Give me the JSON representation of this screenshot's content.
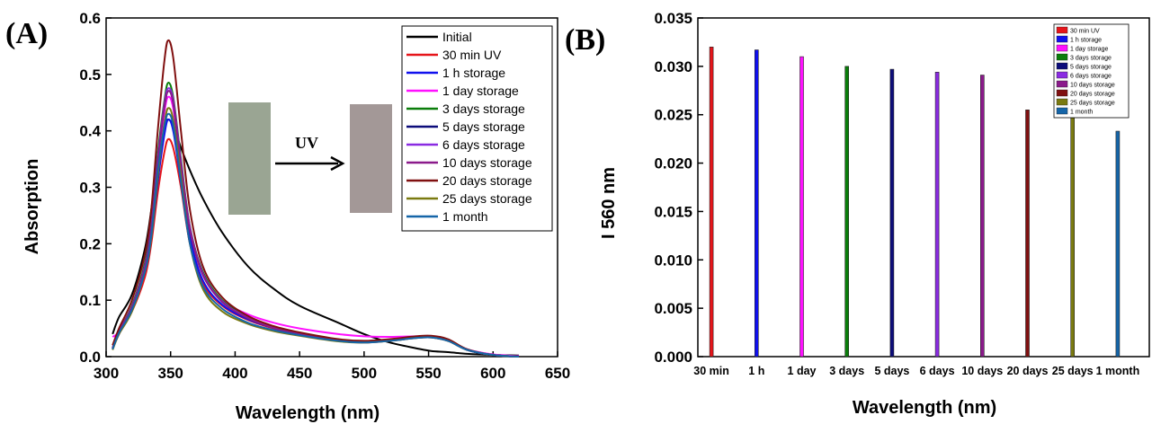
{
  "panels": {
    "a_label": "(A)",
    "b_label": "(B)"
  },
  "inset": {
    "arrow_label": "UV",
    "film_before_color": "#9aa593",
    "film_after_color": "#a39897"
  },
  "colors": {
    "Initial": "#000000",
    "30 min UV": "#e6151a",
    "1 h storage": "#1010ee",
    "1 day storage": "#ff10ff",
    "3 days storage": "#0a7d0a",
    "5 days storage": "#0c0c7a",
    "6 days storage": "#8a2be2",
    "10 days storage": "#8b1a8b",
    "20 days storage": "#801010",
    "25 days storage": "#7a7a10",
    "1 month": "#1565a8"
  },
  "chart_data": [
    {
      "type": "line",
      "xlabel": "Wavelength (nm)",
      "ylabel": "Absorption",
      "xlim": [
        300,
        650
      ],
      "ylim": [
        0.0,
        0.6
      ],
      "xticks": [
        300,
        350,
        400,
        450,
        500,
        550,
        600,
        650
      ],
      "yticks": [
        0.0,
        0.1,
        0.2,
        0.3,
        0.4,
        0.5,
        0.6
      ],
      "grid": false,
      "legend_position": "top-right",
      "x": [
        305,
        310,
        320,
        330,
        335,
        340,
        345,
        348,
        352,
        358,
        365,
        375,
        390,
        410,
        430,
        450,
        480,
        500,
        520,
        540,
        552,
        565,
        580,
        600,
        620
      ],
      "series": [
        {
          "name": "Initial",
          "values": [
            0.04,
            0.07,
            0.11,
            0.19,
            0.26,
            0.35,
            0.41,
            0.42,
            0.41,
            0.37,
            0.33,
            0.28,
            0.22,
            0.16,
            0.12,
            0.09,
            0.06,
            0.04,
            0.025,
            0.015,
            0.01,
            0.008,
            0.005,
            0.003,
            0.002
          ]
        },
        {
          "name": "30 min UV",
          "values": [
            0.015,
            0.04,
            0.08,
            0.14,
            0.2,
            0.29,
            0.36,
            0.385,
            0.37,
            0.3,
            0.2,
            0.13,
            0.09,
            0.065,
            0.05,
            0.04,
            0.028,
            0.025,
            0.028,
            0.033,
            0.034,
            0.028,
            0.012,
            0.003,
            0.0
          ]
        },
        {
          "name": "1 h storage",
          "values": [
            0.015,
            0.04,
            0.085,
            0.15,
            0.21,
            0.31,
            0.39,
            0.42,
            0.4,
            0.31,
            0.21,
            0.135,
            0.092,
            0.066,
            0.051,
            0.041,
            0.029,
            0.026,
            0.029,
            0.034,
            0.035,
            0.029,
            0.012,
            0.003,
            0.0
          ]
        },
        {
          "name": "1 day storage",
          "values": [
            0.035,
            0.045,
            0.09,
            0.16,
            0.23,
            0.34,
            0.43,
            0.46,
            0.44,
            0.34,
            0.23,
            0.15,
            0.1,
            0.075,
            0.06,
            0.05,
            0.04,
            0.036,
            0.035,
            0.036,
            0.036,
            0.03,
            0.013,
            0.004,
            0.001
          ]
        },
        {
          "name": "3 days storage",
          "values": [
            0.015,
            0.045,
            0.09,
            0.165,
            0.24,
            0.36,
            0.45,
            0.485,
            0.46,
            0.35,
            0.23,
            0.15,
            0.1,
            0.07,
            0.052,
            0.042,
            0.03,
            0.027,
            0.03,
            0.035,
            0.036,
            0.03,
            0.012,
            0.003,
            0.0
          ]
        },
        {
          "name": "5 days storage",
          "values": [
            0.015,
            0.045,
            0.088,
            0.16,
            0.23,
            0.35,
            0.44,
            0.47,
            0.45,
            0.34,
            0.225,
            0.145,
            0.097,
            0.068,
            0.051,
            0.041,
            0.029,
            0.026,
            0.029,
            0.034,
            0.035,
            0.029,
            0.012,
            0.003,
            0.0
          ]
        },
        {
          "name": "6 days storage",
          "values": [
            0.015,
            0.045,
            0.088,
            0.16,
            0.23,
            0.35,
            0.445,
            0.475,
            0.455,
            0.345,
            0.228,
            0.147,
            0.098,
            0.069,
            0.052,
            0.042,
            0.03,
            0.027,
            0.03,
            0.035,
            0.036,
            0.03,
            0.012,
            0.003,
            0.0
          ]
        },
        {
          "name": "10 days storage",
          "values": [
            0.015,
            0.045,
            0.087,
            0.158,
            0.228,
            0.345,
            0.44,
            0.47,
            0.45,
            0.34,
            0.225,
            0.145,
            0.097,
            0.068,
            0.051,
            0.041,
            0.029,
            0.026,
            0.029,
            0.034,
            0.035,
            0.029,
            0.012,
            0.003,
            0.0
          ]
        },
        {
          "name": "20 days storage",
          "values": [
            0.02,
            0.05,
            0.1,
            0.18,
            0.26,
            0.4,
            0.52,
            0.56,
            0.53,
            0.4,
            0.26,
            0.16,
            0.105,
            0.072,
            0.054,
            0.043,
            0.031,
            0.028,
            0.031,
            0.036,
            0.037,
            0.031,
            0.013,
            0.003,
            0.0
          ]
        },
        {
          "name": "25 days storage",
          "values": [
            0.012,
            0.04,
            0.08,
            0.15,
            0.21,
            0.32,
            0.41,
            0.44,
            0.42,
            0.32,
            0.2,
            0.12,
            0.08,
            0.058,
            0.045,
            0.037,
            0.027,
            0.025,
            0.028,
            0.033,
            0.034,
            0.028,
            0.012,
            0.003,
            0.0
          ]
        },
        {
          "name": "1 month",
          "values": [
            0.013,
            0.042,
            0.083,
            0.15,
            0.215,
            0.33,
            0.405,
            0.43,
            0.41,
            0.31,
            0.2,
            0.125,
            0.085,
            0.06,
            0.047,
            0.038,
            0.028,
            0.025,
            0.028,
            0.033,
            0.034,
            0.028,
            0.012,
            0.003,
            0.0
          ]
        }
      ]
    },
    {
      "type": "bar",
      "xlabel": "Wavelength (nm)",
      "ylabel": "I 560 nm",
      "ylim": [
        0.0,
        0.035
      ],
      "yticks": [
        0.0,
        0.005,
        0.01,
        0.015,
        0.02,
        0.025,
        0.03,
        0.035
      ],
      "grid": false,
      "legend_position": "top-right",
      "categories": [
        "30 min",
        "1 h",
        "1 day",
        "3 days",
        "5 days",
        "6 days",
        "10 days",
        "20 days",
        "25 days",
        "1 month"
      ],
      "series_names": [
        "30 min UV",
        "1 h storage",
        "1 day storage",
        "3 days storage",
        "5 days storage",
        "6 days storage",
        "10 days storage",
        "20 days storage",
        "25 days storage",
        "1 month"
      ],
      "values": [
        0.032,
        0.0317,
        0.031,
        0.03,
        0.0297,
        0.0294,
        0.0291,
        0.0255,
        0.0247,
        0.0233
      ]
    }
  ]
}
